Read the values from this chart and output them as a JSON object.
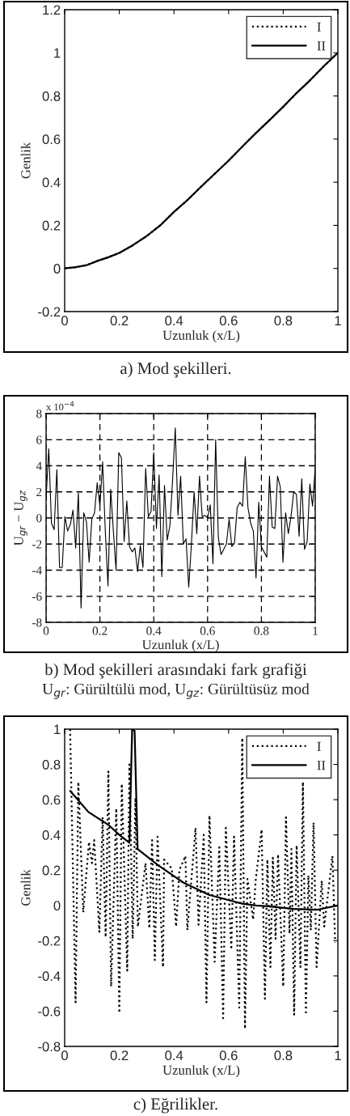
{
  "chart_data": [
    {
      "type": "line",
      "title": "a) Mod şekilleri.",
      "xlabel": "Uzunluk (x/L)",
      "ylabel": "Genlik",
      "xlim": [
        0,
        1
      ],
      "ylim": [
        -0.2,
        1.2
      ],
      "xticks": [
        0,
        0.2,
        0.4,
        0.6,
        0.8,
        1
      ],
      "yticks": [
        -0.2,
        0,
        0.2,
        0.4,
        0.6,
        0.8,
        1,
        1.2
      ],
      "grid": false,
      "legend": "top right",
      "x": [
        0,
        0.04,
        0.08,
        0.12,
        0.16,
        0.2,
        0.25,
        0.3,
        0.35,
        0.4,
        0.45,
        0.5,
        0.55,
        0.6,
        0.65,
        0.7,
        0.75,
        0.8,
        0.85,
        0.9,
        0.95,
        1
      ],
      "series": [
        {
          "name": "II",
          "color": "#000000",
          "line_style": "solid",
          "values": [
            0,
            0.006,
            0.015,
            0.035,
            0.052,
            0.072,
            0.108,
            0.15,
            0.2,
            0.262,
            0.318,
            0.38,
            0.44,
            0.5,
            0.565,
            0.628,
            0.688,
            0.75,
            0.815,
            0.875,
            0.94,
            1.0
          ]
        },
        {
          "name": "I",
          "color": "#000000",
          "line_style": "dotted",
          "values": [
            0,
            0.006,
            0.015,
            0.035,
            0.052,
            0.072,
            0.108,
            0.15,
            0.2,
            0.262,
            0.318,
            0.38,
            0.44,
            0.5,
            0.565,
            0.628,
            0.688,
            0.75,
            0.815,
            0.875,
            0.94,
            1.0
          ]
        }
      ]
    },
    {
      "type": "line",
      "title": "b) Mod şekilleri arasındaki fark grafiği",
      "subtitle": "U$_{gr}$: Gürültülü mod, U$_{gz}$: Gürültüsüz mod",
      "xlabel": "Uzunluk (x/L)",
      "ylabel": "U$_{gr}$ − U$_{gz}$",
      "annotations": [
        "x 10$^{−4}$"
      ],
      "xlim": [
        0,
        1
      ],
      "ylim": [
        -8,
        8
      ],
      "xticks": [
        0,
        0.2,
        0.4,
        0.6,
        0.8,
        1
      ],
      "yticks": [
        -8,
        -6,
        -4,
        -2,
        0,
        2,
        4,
        6,
        8
      ],
      "grid": true,
      "x": [
        0,
        0.01,
        0.02,
        0.03,
        0.04,
        0.05,
        0.06,
        0.07,
        0.08,
        0.09,
        0.1,
        0.11,
        0.12,
        0.13,
        0.14,
        0.15,
        0.16,
        0.17,
        0.18,
        0.19,
        0.2,
        0.21,
        0.22,
        0.23,
        0.24,
        0.25,
        0.26,
        0.27,
        0.28,
        0.29,
        0.3,
        0.31,
        0.32,
        0.33,
        0.34,
        0.35,
        0.36,
        0.37,
        0.38,
        0.39,
        0.4,
        0.41,
        0.42,
        0.43,
        0.44,
        0.45,
        0.46,
        0.47,
        0.48,
        0.49,
        0.5,
        0.51,
        0.52,
        0.53,
        0.54,
        0.55,
        0.56,
        0.57,
        0.58,
        0.59,
        0.6,
        0.61,
        0.62,
        0.63,
        0.64,
        0.65,
        0.66,
        0.67,
        0.68,
        0.69,
        0.7,
        0.71,
        0.72,
        0.73,
        0.74,
        0.75,
        0.76,
        0.77,
        0.78,
        0.79,
        0.8,
        0.81,
        0.82,
        0.83,
        0.84,
        0.85,
        0.86,
        0.87,
        0.88,
        0.89,
        0.9,
        0.91,
        0.92,
        0.93,
        0.94,
        0.95,
        0.96,
        0.97,
        0.98,
        0.99,
        1
      ],
      "series": [
        {
          "color": "#000000",
          "line_style": "solid",
          "values": [
            1.5,
            5.3,
            -0.4,
            -0.9,
            3.7,
            -3.8,
            -3.8,
            0.1,
            -1.0,
            -0.5,
            0.6,
            -2.3,
            1.9,
            -6.9,
            0.4,
            -0.3,
            -3.4,
            -0.1,
            0.4,
            2.7,
            0.9,
            4.3,
            -1.0,
            -5.2,
            2.2,
            -1.0,
            -4.0,
            5.0,
            4.6,
            -1.8,
            1.3,
            -2.2,
            -2.6,
            -2.3,
            -4.1,
            -2.1,
            -3.8,
            3.8,
            0.1,
            0.5,
            5.0,
            -0.8,
            3.3,
            -4.5,
            2.5,
            -1.7,
            -0.6,
            2.9,
            6.9,
            0.2,
            3.2,
            -2.0,
            -1.6,
            -5.3,
            -2.0,
            2.0,
            -1.2,
            3.2,
            0.1,
            0.2,
            0.0,
            1.0,
            -3.5,
            6.0,
            -1.5,
            -2.8,
            -2.4,
            -2.0,
            -0.1,
            -2.2,
            -1.9,
            0.8,
            1.2,
            0.9,
            4.7,
            0.8,
            -0.4,
            -1.0,
            -4.6,
            1.2,
            -2.2,
            -2.6,
            -3.0,
            3.2,
            -0.7,
            -0.8,
            3.2,
            2.4,
            -3.4,
            0.4,
            -1.2,
            0.1,
            2.0,
            1.8,
            -1.4,
            3.0,
            -2.4,
            -1.8,
            2.6,
            0.9,
            3.9
          ]
        }
      ]
    },
    {
      "type": "line",
      "title": "c) Eğrilikler.",
      "xlabel": "Uzunluk (x/L)",
      "ylabel": "Genlik",
      "xlim": [
        0,
        1
      ],
      "ylim": [
        -0.8,
        1
      ],
      "xticks": [
        0,
        0.2,
        0.4,
        0.6,
        0.8,
        1
      ],
      "yticks": [
        -0.8,
        -0.6,
        -0.4,
        -0.2,
        0,
        0.2,
        0.4,
        0.6,
        0.8,
        1
      ],
      "grid": false,
      "legend": "top right",
      "series": [
        {
          "name": "I",
          "color": "#000000",
          "line_style": "dotted",
          "x": [
            0.02,
            0.04,
            0.05,
            0.068,
            0.089,
            0.1,
            0.108,
            0.127,
            0.139,
            0.15,
            0.16,
            0.17,
            0.189,
            0.2,
            0.209,
            0.229,
            0.237,
            0.249,
            0.259,
            0.268,
            0.296,
            0.31,
            0.32,
            0.33,
            0.34,
            0.36,
            0.364,
            0.392,
            0.408,
            0.42,
            0.442,
            0.449,
            0.479,
            0.49,
            0.509,
            0.519,
            0.53,
            0.549,
            0.566,
            0.58,
            0.59,
            0.61,
            0.62,
            0.639,
            0.65,
            0.66,
            0.669,
            0.69,
            0.699,
            0.721,
            0.733,
            0.742,
            0.753,
            0.762,
            0.772,
            0.781,
            0.8,
            0.81,
            0.823,
            0.83,
            0.84,
            0.849,
            0.863,
            0.872,
            0.883,
            0.892,
            0.901,
            0.911,
            0.922,
            0.941,
            0.95,
            0.98,
            0.99
          ],
          "values": [
            1.0,
            -0.55,
            0.7,
            -0.04,
            0.36,
            0.24,
            0.37,
            -0.15,
            0.5,
            -0.18,
            0.76,
            -0.46,
            0.55,
            -0.61,
            0.69,
            -0.37,
            0.8,
            -0.19,
            0.61,
            -0.12,
            0.24,
            -0.13,
            0.37,
            -0.31,
            0.39,
            -0.35,
            0.26,
            0.21,
            -0.12,
            0.2,
            0.28,
            -0.14,
            0.44,
            -0.11,
            0.4,
            -0.55,
            0.51,
            -0.32,
            0.33,
            -0.64,
            0.44,
            -0.25,
            0.39,
            -0.58,
            0.95,
            -0.7,
            0.15,
            -0.08,
            0.14,
            0.43,
            -0.53,
            0.26,
            -0.35,
            0.27,
            -0.19,
            0.29,
            -0.46,
            0.5,
            -0.16,
            0.32,
            -0.62,
            0.34,
            -0.35,
            0.7,
            -0.62,
            0.17,
            -0.14,
            0.47,
            -0.35,
            0.14,
            -0.12,
            0.28,
            -0.21
          ]
        },
        {
          "name": "II",
          "color": "#000000",
          "line_style": "solid",
          "x": [
            0.02,
            0.087,
            0.162,
            0.2,
            0.237,
            0.247,
            0.256,
            0.267,
            0.34,
            0.434,
            0.528,
            0.6,
            0.65,
            0.7,
            0.744,
            0.838,
            0.922,
            1.0
          ],
          "values": [
            0.65,
            0.53,
            0.455,
            0.4,
            0.355,
            1.0,
            0.99,
            0.32,
            0.23,
            0.13,
            0.06,
            0.03,
            0.01,
            0.0,
            -0.005,
            -0.02,
            -0.025,
            0.0
          ]
        }
      ]
    }
  ]
}
